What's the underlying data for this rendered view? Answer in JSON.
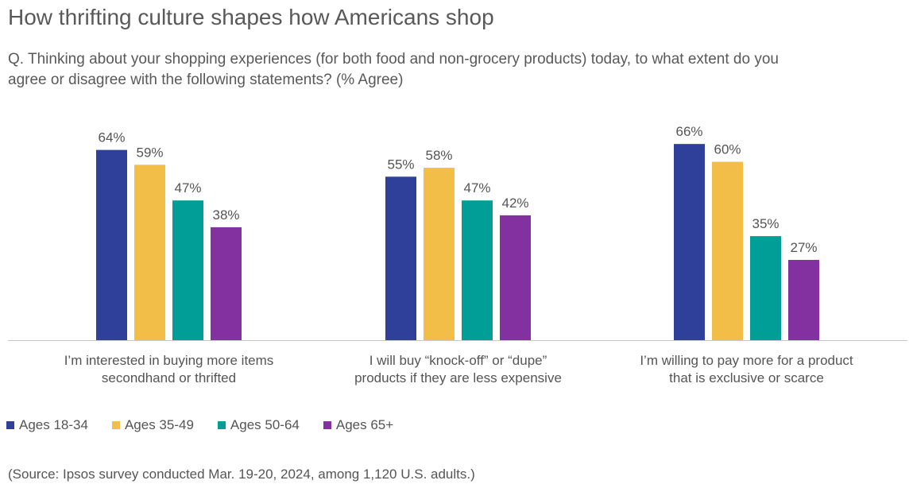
{
  "title": "How thrifting culture shapes how Americans shop",
  "question": "Q. Thinking about your shopping experiences (for both food and non-grocery products) today, to what extent do you agree or disagree with the following statements? (% Agree)",
  "source": "(Source: Ipsos survey conducted Mar. 19-20, 2024, among 1,120 U.S. adults.)",
  "chart_data": {
    "type": "bar",
    "categories": [
      [
        "I’m interested in buying more items",
        "secondhand or thrifted"
      ],
      [
        "I will buy “knock-off” or “dupe”",
        "products if they are less expensive"
      ],
      [
        "I’m willing to pay more for a product",
        "that is exclusive or scarce"
      ]
    ],
    "series": [
      {
        "name": "Ages 18-34",
        "color": "#2E4099",
        "values": [
          64,
          55,
          66
        ],
        "labels": [
          "64%",
          "55%",
          "66%"
        ]
      },
      {
        "name": "Ages 35-49",
        "color": "#F2BE47",
        "values": [
          59,
          58,
          60
        ],
        "labels": [
          "59%",
          "58%",
          "60%"
        ]
      },
      {
        "name": "Ages 50-64",
        "color": "#009E96",
        "values": [
          47,
          47,
          35
        ],
        "labels": [
          "47%",
          "47%",
          "35%"
        ]
      },
      {
        "name": "Ages 65+",
        "color": "#8330A0",
        "values": [
          38,
          42,
          27
        ],
        "labels": [
          "38%",
          "42%",
          "27%"
        ]
      }
    ],
    "unit": "%",
    "ylim": [
      0,
      100
    ],
    "grid": false,
    "legend_position": "bottom-left"
  }
}
